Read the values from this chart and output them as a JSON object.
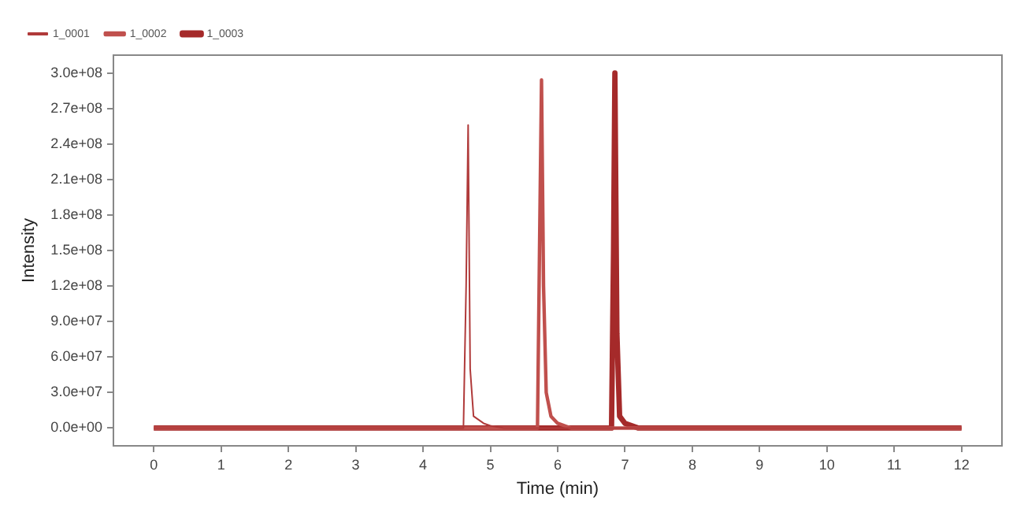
{
  "chart_data": {
    "type": "line",
    "xlabel": "Time (min)",
    "ylabel": "Intensity",
    "legend": "top left",
    "grid": false,
    "marker": "none",
    "line_style": "solid",
    "xlim": [
      -0.6,
      12.6
    ],
    "xticks": [
      0,
      1,
      2,
      3,
      4,
      5,
      6,
      7,
      8,
      9,
      10,
      11,
      12
    ],
    "ylim": [
      -15000000,
      315000000
    ],
    "yticks": [
      {
        "value": 0,
        "label": "0.0e+00"
      },
      {
        "value": 30000000,
        "label": "3.0e+07"
      },
      {
        "value": 60000000,
        "label": "6.0e+07"
      },
      {
        "value": 90000000,
        "label": "9.0e+07"
      },
      {
        "value": 120000000,
        "label": "1.2e+08"
      },
      {
        "value": 150000000,
        "label": "1.5e+08"
      },
      {
        "value": 180000000,
        "label": "1.8e+08"
      },
      {
        "value": 210000000,
        "label": "2.1e+08"
      },
      {
        "value": 240000000,
        "label": "2.4e+08"
      },
      {
        "value": 270000000,
        "label": "2.7e+08"
      },
      {
        "value": 300000000,
        "label": "3.0e+08"
      }
    ],
    "series": [
      {
        "name": "1_0001",
        "color": "#b03a3a",
        "x": [
          0,
          4.6,
          4.64,
          4.67,
          4.7,
          4.75,
          4.8,
          4.9,
          5.0,
          5.2,
          12
        ],
        "values": [
          0,
          0,
          120000000,
          256000000,
          50000000,
          10000000,
          8000000,
          4000000,
          2000000,
          0,
          0
        ]
      },
      {
        "name": "1_0002",
        "color": "#c0504d",
        "x": [
          0,
          5.7,
          5.73,
          5.76,
          5.79,
          5.83,
          5.9,
          6.0,
          6.2,
          12
        ],
        "values": [
          0,
          0,
          150000000,
          294000000,
          120000000,
          30000000,
          10000000,
          4000000,
          0,
          0
        ]
      },
      {
        "name": "1_0003",
        "color": "#a52a2a",
        "x": [
          0,
          6.8,
          6.83,
          6.85,
          6.88,
          6.92,
          7.0,
          7.2,
          12
        ],
        "values": [
          0,
          0,
          150000000,
          300000000,
          80000000,
          10000000,
          4000000,
          0,
          0
        ]
      }
    ]
  }
}
